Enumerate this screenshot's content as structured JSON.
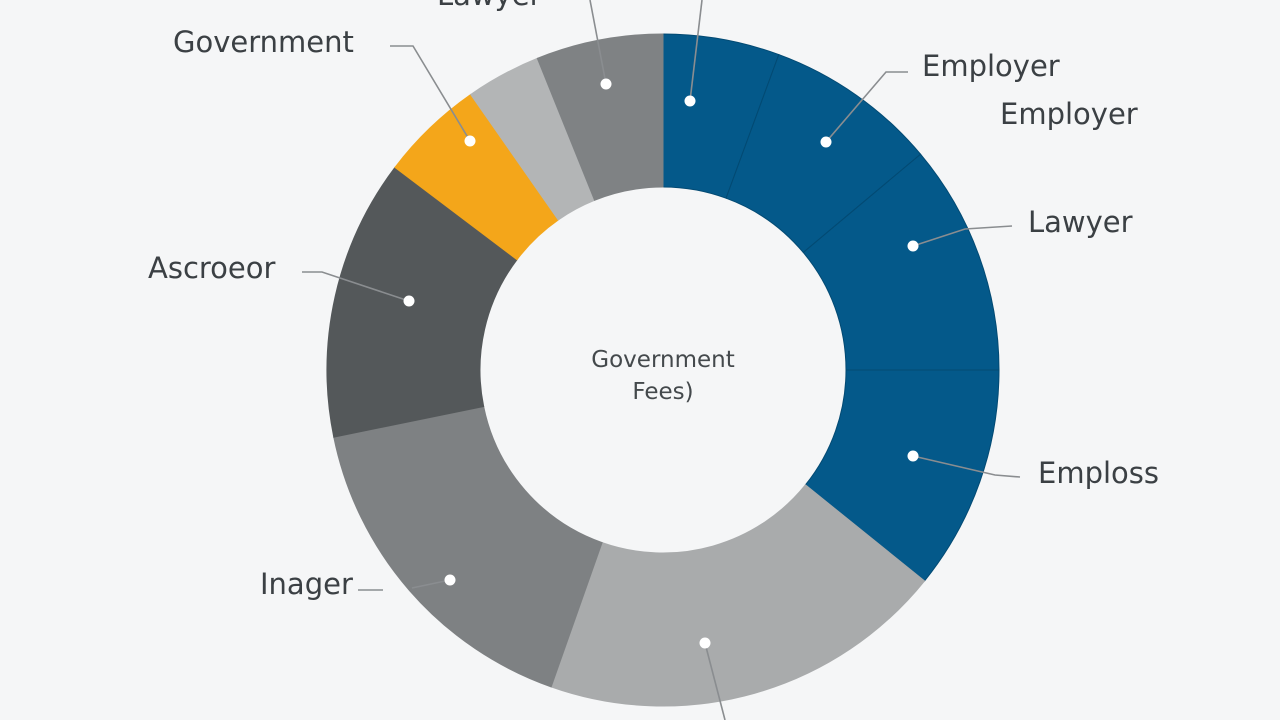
{
  "chart_data": {
    "type": "pie",
    "variant": "donut",
    "center_label": [
      "Government",
      "Fees)"
    ],
    "slices": [
      {
        "label": "",
        "value": 5.6,
        "color": "#04598a"
      },
      {
        "label": "Employer",
        "value": 8.3,
        "color": "#04598a"
      },
      {
        "label": "Lawyer",
        "value": 11.1,
        "color": "#04598a"
      },
      {
        "label": "Emploss",
        "value": 10.8,
        "color": "#04598a"
      },
      {
        "label": "",
        "value": 19.6,
        "color": "#a9abac"
      },
      {
        "label": "Inager",
        "value": 16.4,
        "color": "#7e8183"
      },
      {
        "label": "Ascroeor",
        "value": 13.5,
        "color": "#54585a"
      },
      {
        "label": "Government",
        "value": 5.0,
        "color": "#f4a61a"
      },
      {
        "label": "",
        "value": 3.6,
        "color": "#b3b5b6"
      },
      {
        "label": "Lawyer",
        "value": 6.1,
        "color": "#7f8284"
      }
    ],
    "extra_labels": [
      "Employer"
    ],
    "legend": "none"
  }
}
